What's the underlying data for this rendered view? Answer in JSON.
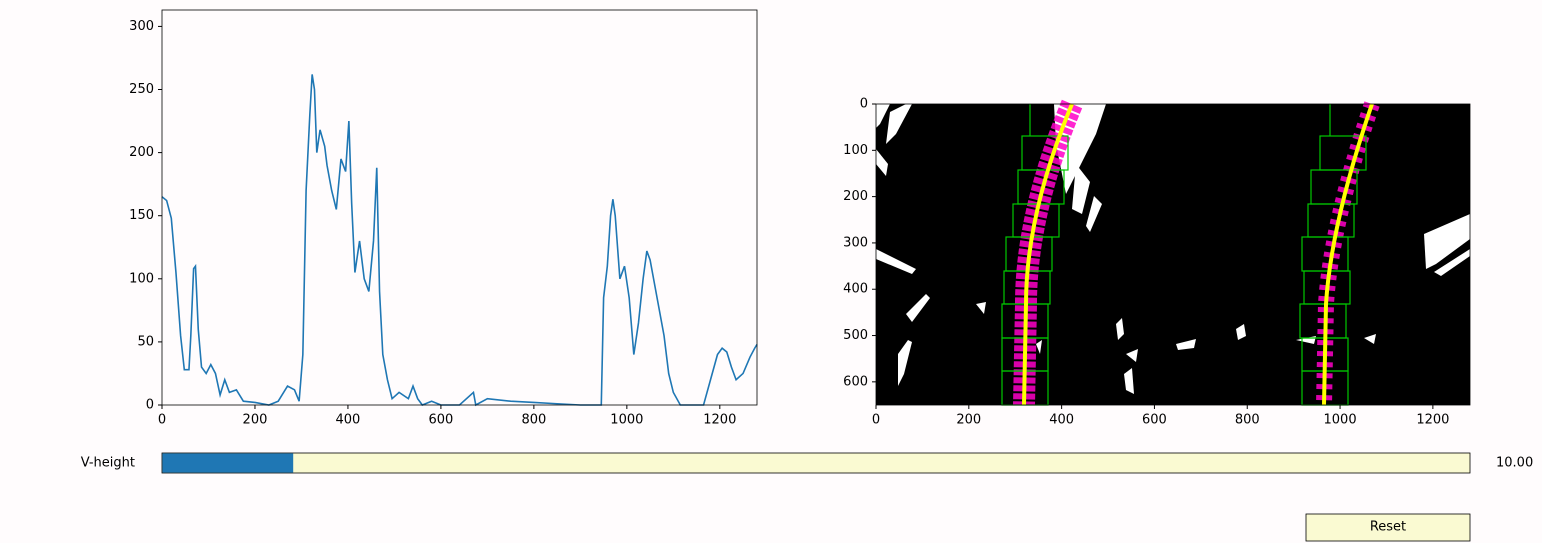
{
  "chart_data": [
    {
      "type": "line",
      "xlim": [
        0,
        1280
      ],
      "ylim": [
        0,
        313
      ],
      "xticks": [
        0,
        200,
        400,
        600,
        800,
        1000,
        1200
      ],
      "yticks": [
        0,
        50,
        100,
        150,
        200,
        250,
        300
      ],
      "series": [
        {
          "color": "#1f77b4",
          "x": [
            0,
            10,
            20,
            30,
            40,
            48,
            58,
            62,
            68,
            72,
            78,
            85,
            95,
            105,
            115,
            125,
            135,
            145,
            160,
            175,
            200,
            230,
            250,
            270,
            285,
            295,
            303,
            310,
            318,
            323,
            328,
            333,
            340,
            350,
            355,
            365,
            375,
            385,
            395,
            402,
            408,
            415,
            425,
            435,
            445,
            455,
            462,
            468,
            475,
            485,
            495,
            510,
            530,
            540,
            550,
            560,
            580,
            600,
            640,
            670,
            675,
            700,
            750,
            800,
            850,
            900,
            945,
            950,
            958,
            965,
            970,
            975,
            985,
            995,
            1005,
            1015,
            1025,
            1035,
            1043,
            1050,
            1060,
            1070,
            1080,
            1090,
            1100,
            1115,
            1165,
            1180,
            1195,
            1205,
            1215,
            1225,
            1235,
            1250,
            1265,
            1275,
            1280
          ],
          "values": [
            165,
            162,
            148,
            105,
            55,
            28,
            28,
            55,
            108,
            110,
            60,
            30,
            25,
            32,
            25,
            8,
            20,
            10,
            12,
            3,
            2,
            0,
            3,
            15,
            12,
            3,
            40,
            170,
            230,
            262,
            250,
            200,
            218,
            205,
            190,
            170,
            155,
            195,
            185,
            225,
            160,
            105,
            130,
            100,
            90,
            130,
            188,
            90,
            40,
            20,
            5,
            10,
            5,
            15,
            5,
            0,
            3,
            0,
            0,
            10,
            0,
            5,
            3,
            2,
            1,
            0,
            0,
            85,
            110,
            150,
            163,
            150,
            100,
            110,
            85,
            40,
            65,
            100,
            122,
            115,
            95,
            75,
            55,
            25,
            10,
            0,
            0,
            20,
            40,
            45,
            42,
            30,
            20,
            25,
            38,
            45,
            48
          ]
        }
      ]
    },
    {
      "type": "image",
      "xlim": [
        0,
        1280
      ],
      "ylim": [
        650,
        0
      ],
      "xticks": [
        0,
        200,
        400,
        600,
        800,
        1000,
        1200
      ],
      "yticks": [
        0,
        100,
        200,
        300,
        400,
        500,
        600
      ]
    }
  ],
  "slider": {
    "label": "V-height",
    "value": 10,
    "value_label": "10.00",
    "min": 0,
    "max": 100,
    "color": "#1f77b4"
  },
  "button": {
    "label": "Reset"
  }
}
